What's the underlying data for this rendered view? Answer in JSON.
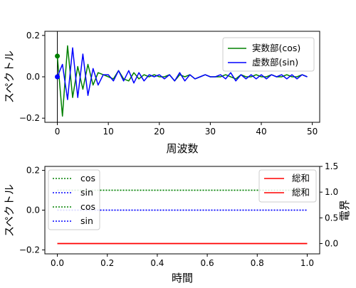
{
  "chart_data": [
    {
      "type": "line",
      "xlabel": "周波数",
      "ylabel": "スペクトル",
      "xlim": [
        -2.45,
        51.45
      ],
      "ylim": [
        -0.22,
        0.22
      ],
      "xticks": [
        0,
        10,
        20,
        30,
        40,
        50
      ],
      "yticks": [
        -0.2,
        0.0,
        0.2
      ],
      "ytick_labels": [
        "−0.2",
        "0.0",
        "0.2"
      ],
      "grid": false,
      "legend": "top-right",
      "vline_x": 0,
      "markers": [
        {
          "series": "実数部(cos)",
          "x": 0,
          "y": 0.1
        },
        {
          "series": "虚数部(sin)",
          "x": 0,
          "y": 0.0
        }
      ],
      "series": [
        {
          "name": "実数部(cos)",
          "color": "#008000",
          "x": [
            0,
            1,
            2,
            3,
            4,
            5,
            6,
            7,
            8,
            9,
            10,
            11,
            12,
            13,
            14,
            15,
            16,
            17,
            18,
            19,
            20,
            21,
            22,
            23,
            24,
            25,
            26,
            27,
            28,
            29,
            30,
            31,
            32,
            33,
            34,
            35,
            36,
            37,
            38,
            39,
            40,
            41,
            42,
            43,
            44,
            45,
            46,
            47,
            48,
            49
          ],
          "values": [
            0.1,
            -0.19,
            0.15,
            -0.1,
            0.05,
            -0.06,
            0.06,
            -0.04,
            0.02,
            0.01,
            0.0,
            -0.01,
            0.03,
            -0.01,
            -0.02,
            0.02,
            -0.01,
            0.01,
            0.0,
            0.01,
            0.0,
            0.0,
            0.01,
            -0.02,
            0.01,
            0.0,
            0.01,
            -0.01,
            0.0,
            0.01,
            0.0,
            0.0,
            0.0,
            0.01,
            0.0,
            -0.01,
            0.01,
            0.0,
            0.0,
            0.01,
            0.0,
            0.0,
            0.01,
            0.0,
            0.0,
            0.01,
            0.0,
            0.0,
            0.01,
            0.0
          ]
        },
        {
          "name": "虚数部(sin)",
          "color": "#0000ff",
          "x": [
            0,
            1,
            2,
            3,
            4,
            5,
            6,
            7,
            8,
            9,
            10,
            11,
            12,
            13,
            14,
            15,
            16,
            17,
            18,
            19,
            20,
            21,
            22,
            23,
            24,
            25,
            26,
            27,
            28,
            29,
            30,
            31,
            32,
            33,
            34,
            35,
            36,
            37,
            38,
            39,
            40,
            41,
            42,
            43,
            44,
            45,
            46,
            47,
            48,
            49
          ],
          "values": [
            0.0,
            0.06,
            -0.11,
            0.14,
            -0.1,
            0.11,
            -0.09,
            0.04,
            -0.04,
            0.01,
            0.01,
            -0.02,
            0.03,
            -0.02,
            0.03,
            -0.03,
            0.02,
            -0.02,
            0.01,
            0.0,
            0.01,
            -0.01,
            0.01,
            -0.02,
            0.02,
            -0.02,
            0.01,
            -0.01,
            0.0,
            0.01,
            0.0,
            0.0,
            0.01,
            -0.01,
            0.02,
            -0.02,
            0.01,
            -0.01,
            0.01,
            -0.01,
            0.01,
            -0.01,
            0.01,
            0.0,
            0.01,
            -0.01,
            0.01,
            -0.01,
            0.01,
            0.0
          ]
        }
      ]
    },
    {
      "type": "line",
      "xlabel": "時間",
      "ylabel": "スペクトル",
      "ylabel_right": "電界",
      "xlim": [
        -0.05,
        1.05
      ],
      "ylim": [
        -0.22,
        0.22
      ],
      "ylim_right": [
        -0.2,
        1.5
      ],
      "xticks": [
        0.0,
        0.2,
        0.4,
        0.6,
        0.8,
        1.0
      ],
      "xtick_labels": [
        "0.0",
        "0.2",
        "0.4",
        "0.6",
        "0.8",
        "1.0"
      ],
      "yticks": [
        -0.2,
        0.0,
        0.2
      ],
      "ytick_labels": [
        "−0.2",
        "0.0",
        "0.2"
      ],
      "yticks_right": [
        0.0,
        0.5,
        1.0,
        1.5
      ],
      "ytick_labels_right": [
        "0.0",
        "0.5",
        "1.0",
        "1.5"
      ],
      "grid": false,
      "legend_left": "top-left",
      "legend_right": "top-right",
      "series": [
        {
          "name": "cos",
          "axis": "left",
          "color": "#008000",
          "style": "dotted",
          "x": [
            0,
            1
          ],
          "values": [
            0.1,
            0.1
          ]
        },
        {
          "name": "sin",
          "axis": "left",
          "color": "#0000ff",
          "style": "dotted",
          "x": [
            0,
            1
          ],
          "values": [
            0.0,
            0.0
          ]
        },
        {
          "name": "cos",
          "axis": "left",
          "color": "#008000",
          "style": "dotted",
          "x": [
            0,
            1
          ],
          "values": [
            0.1,
            0.1
          ]
        },
        {
          "name": "sin",
          "axis": "left",
          "color": "#0000ff",
          "style": "dotted",
          "x": [
            0,
            1
          ],
          "values": [
            0.0,
            0.0
          ]
        },
        {
          "name": "総和",
          "axis": "right",
          "color": "#ff0000",
          "style": "solid",
          "x": [
            0,
            1
          ],
          "values": [
            0.0,
            0.0
          ]
        },
        {
          "name": "総和",
          "axis": "right",
          "color": "#ff0000",
          "style": "solid",
          "x": [
            0,
            1
          ],
          "values": [
            0.0,
            0.0
          ]
        }
      ]
    }
  ]
}
